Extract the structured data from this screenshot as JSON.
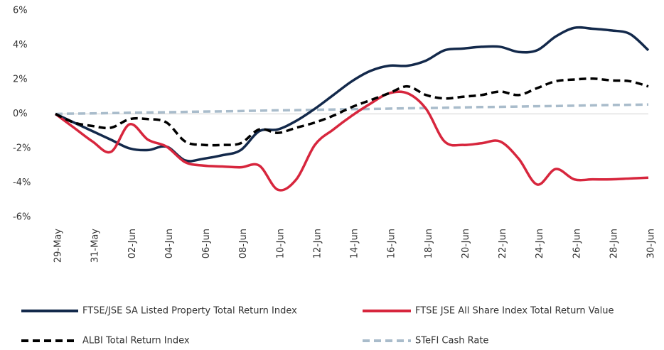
{
  "chart_data": {
    "type": "line",
    "categories": [
      "29-May",
      null,
      "31-May",
      null,
      "02-Jun",
      null,
      "04-Jun",
      null,
      "06-Jun",
      null,
      "08-Jun",
      null,
      "10-Jun",
      null,
      "12-Jun",
      null,
      "14-Jun",
      null,
      "16-Jun",
      null,
      "18-Jun",
      null,
      "20-Jun",
      null,
      "22-Jun",
      null,
      "24-Jun",
      null,
      "26-Jun",
      null,
      "28-Jun",
      null,
      "30-Jun"
    ],
    "series": [
      {
        "name": "FTSE/JSE SA Listed Property Total Return Index",
        "color": "#13294b",
        "style": "solid",
        "values": [
          0,
          -0.5,
          -1.0,
          -1.5,
          -2.0,
          -2.1,
          -1.9,
          -2.7,
          -2.6,
          -2.4,
          -2.1,
          -1.0,
          -0.9,
          -0.4,
          0.3,
          1.1,
          1.9,
          2.5,
          2.8,
          2.8,
          3.1,
          3.7,
          3.8,
          3.9,
          3.9,
          3.6,
          3.7,
          4.5,
          5.0,
          4.95,
          4.85,
          4.65,
          3.7
        ]
      },
      {
        "name": "FTSE JSE All Share Index Total Return Value",
        "color": "#d7263d",
        "style": "solid",
        "values": [
          0,
          -0.8,
          -1.6,
          -2.2,
          -0.6,
          -1.5,
          -1.9,
          -2.8,
          -3.0,
          -3.05,
          -3.1,
          -3.0,
          -4.4,
          -3.8,
          -1.8,
          -0.9,
          -0.1,
          0.6,
          1.2,
          1.2,
          0.3,
          -1.6,
          -1.8,
          -1.7,
          -1.6,
          -2.6,
          -4.1,
          -3.2,
          -3.8,
          -3.8,
          -3.8,
          -3.75,
          -3.7
        ]
      },
      {
        "name": "ALBI Total Return Index",
        "color": "#000000",
        "style": "dashed",
        "values": [
          0,
          -0.5,
          -0.7,
          -0.8,
          -0.3,
          -0.3,
          -0.5,
          -1.6,
          -1.8,
          -1.8,
          -1.7,
          -0.9,
          -1.1,
          -0.8,
          -0.5,
          -0.1,
          0.4,
          0.8,
          1.2,
          1.6,
          1.1,
          0.9,
          1.0,
          1.1,
          1.3,
          1.1,
          1.5,
          1.9,
          2.0,
          2.05,
          1.95,
          1.9,
          1.6
        ]
      },
      {
        "name": "STeFI Cash Rate",
        "color": "#a9bccb",
        "style": "dashed",
        "values": [
          0,
          0.02,
          0.03,
          0.05,
          0.07,
          0.09,
          0.1,
          0.12,
          0.14,
          0.15,
          0.17,
          0.19,
          0.21,
          0.22,
          0.24,
          0.26,
          0.28,
          0.29,
          0.31,
          0.33,
          0.34,
          0.36,
          0.38,
          0.4,
          0.41,
          0.43,
          0.45,
          0.46,
          0.48,
          0.5,
          0.52,
          0.53,
          0.55
        ]
      }
    ],
    "ylim": [
      -6,
      6
    ],
    "yticks": [
      {
        "value": 6,
        "label": "6%"
      },
      {
        "value": 4,
        "label": "4%"
      },
      {
        "value": 2,
        "label": "2%"
      },
      {
        "value": 0,
        "label": "0%"
      },
      {
        "value": -2,
        "label": "-2%"
      },
      {
        "value": -4,
        "label": "-4%"
      },
      {
        "value": -6,
        "label": "-6%"
      }
    ]
  }
}
